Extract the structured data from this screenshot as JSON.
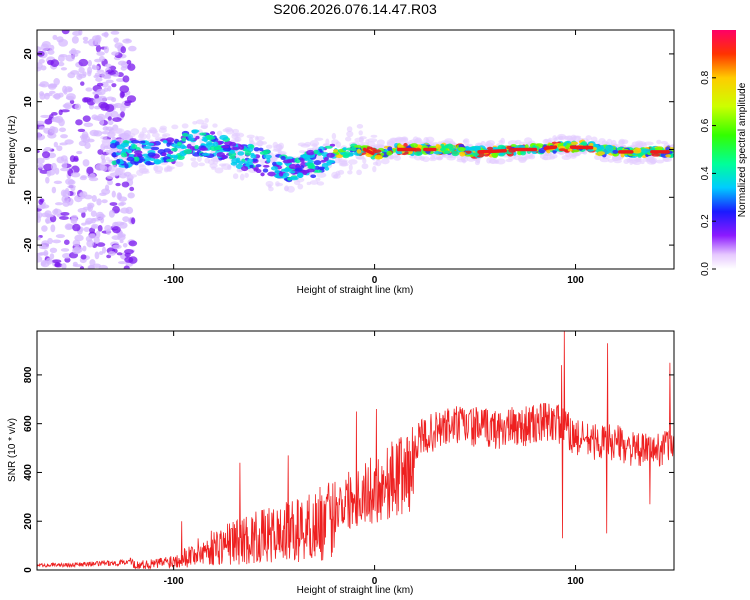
{
  "title": "S206.2026.076.14.47.R03",
  "chart_data": [
    {
      "type": "heatmap",
      "xlabel": "Height of straight line (km)",
      "ylabel": "Frequency (Hz)",
      "xlim": [
        -168,
        149
      ],
      "ylim": [
        -25,
        25
      ],
      "xticks": [
        -100,
        0,
        100
      ],
      "xtick_labels": [
        "-100",
        "0",
        "100"
      ],
      "yticks": [
        -20,
        -10,
        0,
        10,
        20
      ],
      "ytick_labels": [
        "-20",
        "-10",
        "0",
        "10",
        "20"
      ],
      "ridge": {
        "x": [
          -130,
          -120,
          -110,
          -100,
          -90,
          -80,
          -70,
          -60,
          -50,
          -40,
          -30,
          -20,
          -10,
          -5,
          0,
          10,
          20,
          30,
          40,
          50,
          60,
          70,
          80,
          90,
          100,
          105,
          110,
          120,
          130,
          140,
          149
        ],
        "y": [
          -1,
          -1,
          -0.5,
          0,
          1.5,
          1,
          -1,
          -2,
          -3.5,
          -4,
          -3,
          -1,
          0,
          0,
          -1,
          0,
          0,
          0,
          0,
          -0.5,
          -0.5,
          0,
          0,
          0.5,
          0.5,
          1,
          0,
          -0.5,
          -0.5,
          -0.5,
          -0.5
        ]
      },
      "colorbar": {
        "label": "Normalized spectral amplitude",
        "range": [
          0,
          1
        ],
        "ticks": [
          0.0,
          0.2,
          0.4,
          0.6,
          0.8
        ],
        "tick_labels": [
          "0.0",
          "0.2",
          "0.4",
          "0.6",
          "0.8"
        ]
      }
    },
    {
      "type": "line",
      "xlabel": "Height of straight line (km)",
      "ylabel": "SNR (10 * v/v)",
      "xlim": [
        -168,
        149
      ],
      "ylim": [
        0,
        980
      ],
      "xticks": [
        -100,
        0,
        100
      ],
      "xtick_labels": [
        "-100",
        "0",
        "100"
      ],
      "yticks": [
        0,
        200,
        400,
        600,
        800
      ],
      "ytick_labels": [
        "0",
        "200",
        "400",
        "600",
        "800"
      ],
      "series": [
        {
          "name": "SNR",
          "color": "#ee2020",
          "envelope": {
            "x": [
              -168,
              -150,
              -130,
              -110,
              -100,
              -90,
              -80,
              -70,
              -60,
              -50,
              -40,
              -30,
              -20,
              -10,
              0,
              10,
              20,
              30,
              40,
              50,
              60,
              70,
              80,
              90,
              100,
              110,
              120,
              130,
              140,
              149
            ],
            "y": [
              18,
              22,
              28,
              45,
              70,
              120,
              170,
              210,
              240,
              260,
              290,
              330,
              380,
              430,
              470,
              540,
              600,
              650,
              680,
              670,
              660,
              670,
              680,
              700,
              620,
              600,
              600,
              560,
              560,
              600
            ]
          },
          "peaks": [
            {
              "x": -96,
              "y": 200
            },
            {
              "x": -67,
              "y": 440
            },
            {
              "x": -43,
              "y": 470
            },
            {
              "x": -9,
              "y": 650
            },
            {
              "x": 1,
              "y": 660
            },
            {
              "x": 93,
              "y": 840
            },
            {
              "x": 94.5,
              "y": 980
            },
            {
              "x": 116,
              "y": 930
            },
            {
              "x": 147,
              "y": 850
            }
          ],
          "dips": [
            {
              "x": 93.5,
              "y": 130
            },
            {
              "x": 115.5,
              "y": 150
            },
            {
              "x": 137,
              "y": 270
            }
          ]
        }
      ]
    }
  ]
}
